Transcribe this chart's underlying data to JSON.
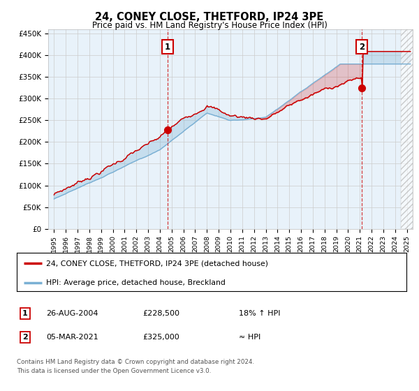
{
  "title": "24, CONEY CLOSE, THETFORD, IP24 3PE",
  "subtitle": "Price paid vs. HM Land Registry's House Price Index (HPI)",
  "ylabel_ticks": [
    0,
    50000,
    100000,
    150000,
    200000,
    250000,
    300000,
    350000,
    400000,
    450000
  ],
  "ylabel_labels": [
    "£0",
    "£50K",
    "£100K",
    "£150K",
    "£200K",
    "£250K",
    "£300K",
    "£350K",
    "£400K",
    "£450K"
  ],
  "ylim": [
    0,
    460000
  ],
  "xlim_start": 1994.5,
  "xlim_end": 2025.5,
  "line_color_red": "#cc0000",
  "line_color_blue": "#7ab0d4",
  "fill_color": "#ddeef8",
  "ann1_x": 2004.65,
  "ann1_y": 228500,
  "ann2_x": 2021.17,
  "ann2_y": 325000,
  "legend_line1": "24, CONEY CLOSE, THETFORD, IP24 3PE (detached house)",
  "legend_line2": "HPI: Average price, detached house, Breckland",
  "row1_num": "1",
  "row1_date": "26-AUG-2004",
  "row1_price": "£228,500",
  "row1_hpi": "18% ↑ HPI",
  "row2_num": "2",
  "row2_date": "05-MAR-2021",
  "row2_price": "£325,000",
  "row2_hpi": "≈ HPI",
  "footer": "Contains HM Land Registry data © Crown copyright and database right 2024.\nThis data is licensed under the Open Government Licence v3.0.",
  "hatch_start": 2024.5,
  "chart_bg": "#e8f2fa"
}
